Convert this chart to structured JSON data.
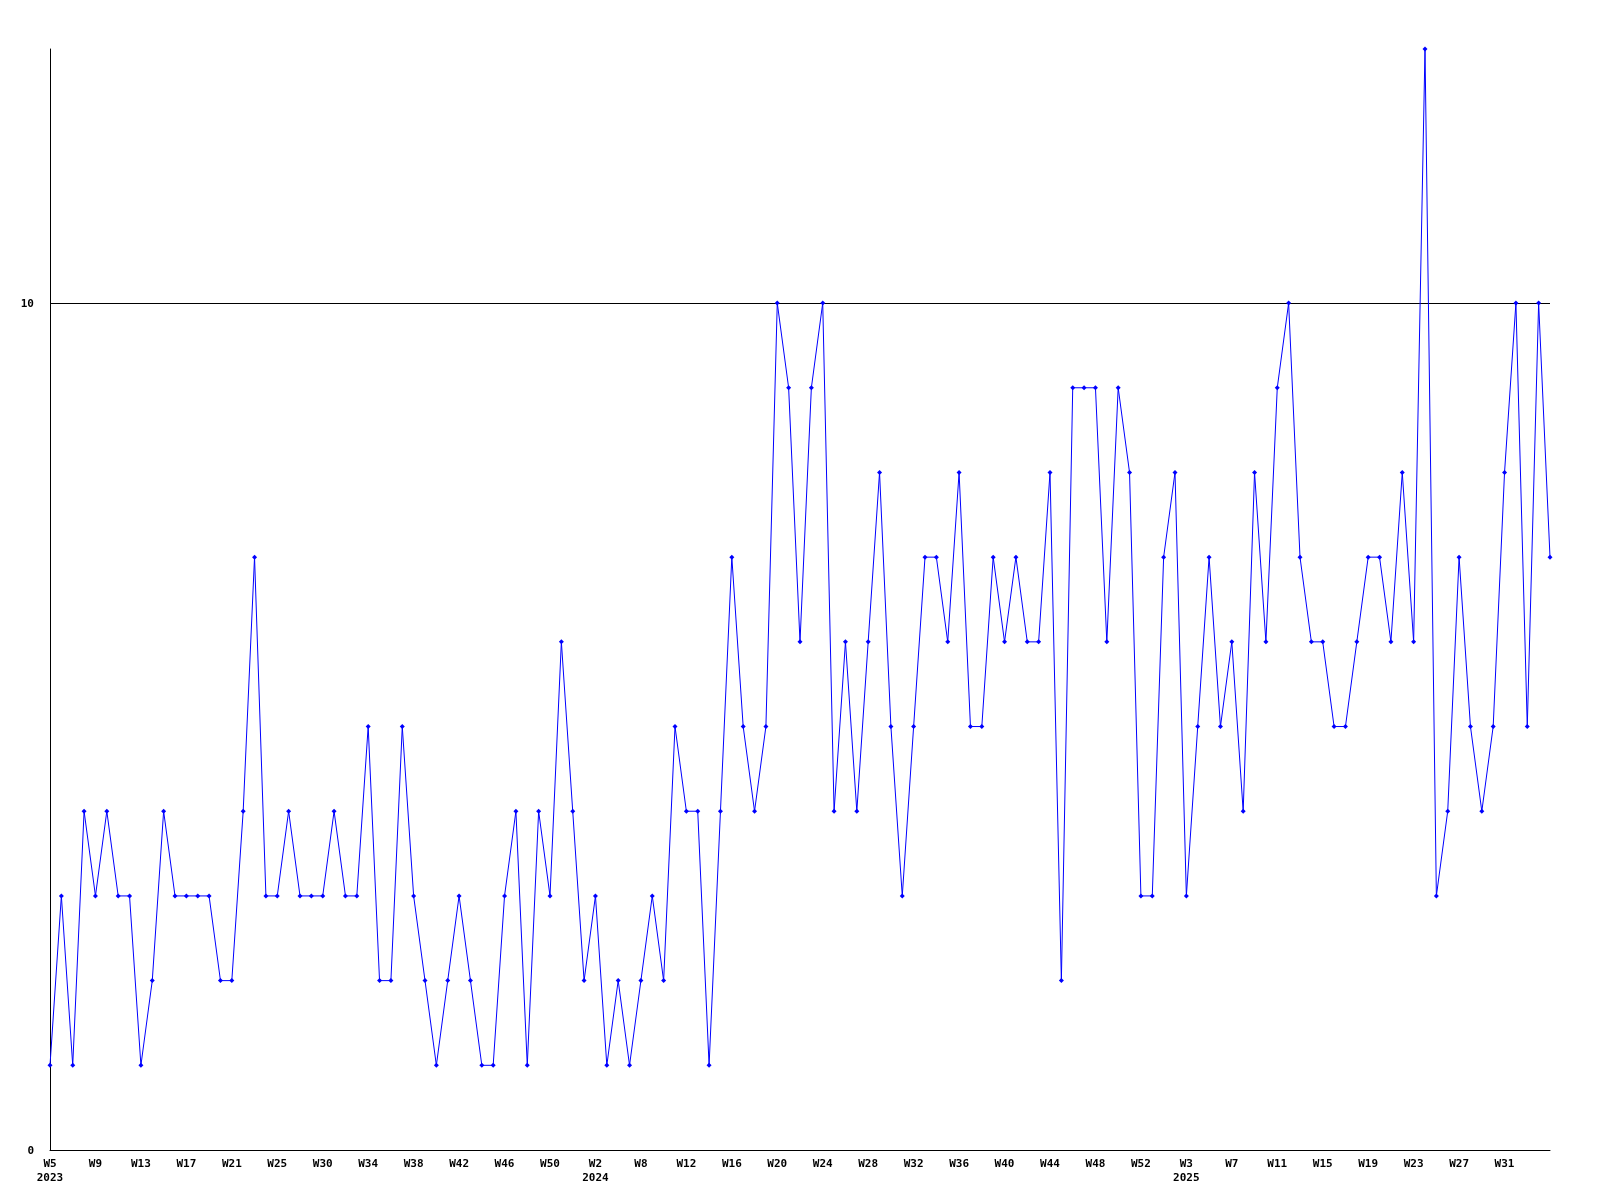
{
  "chart_data": {
    "type": "line",
    "categories": [
      "W5\n2023",
      null,
      null,
      null,
      "W9",
      null,
      null,
      null,
      "W13",
      null,
      null,
      null,
      "W17",
      null,
      null,
      null,
      "W21",
      null,
      null,
      null,
      "W25",
      null,
      null,
      null,
      "W30",
      null,
      null,
      null,
      "W34",
      null,
      null,
      null,
      "W38",
      null,
      null,
      null,
      "W42",
      null,
      null,
      null,
      "W46",
      null,
      null,
      null,
      "W50",
      null,
      null,
      null,
      "W2\n2024",
      null,
      null,
      null,
      "W8",
      null,
      null,
      null,
      "W12",
      null,
      null,
      null,
      "W16",
      null,
      null,
      null,
      "W20",
      null,
      null,
      null,
      "W24",
      null,
      null,
      null,
      "W28",
      null,
      null,
      null,
      "W32",
      null,
      null,
      null,
      "W36",
      null,
      null,
      null,
      "W40",
      null,
      null,
      null,
      "W44",
      null,
      null,
      null,
      "W48",
      null,
      null,
      null,
      "W52",
      null,
      null,
      null,
      "W3\n2025",
      null,
      null,
      null,
      "W7",
      null,
      null,
      null,
      "W11",
      null,
      null,
      null,
      "W15",
      null,
      null,
      null,
      "W19",
      null,
      null,
      null,
      "W23",
      null,
      null,
      null,
      "W27",
      null,
      null,
      null,
      "W31",
      null,
      null,
      null,
      null
    ],
    "series": [
      {
        "color": "#0000ff",
        "values": [
          1,
          3,
          1,
          4,
          3,
          4,
          3,
          3,
          1,
          2,
          4,
          3,
          3,
          3,
          3,
          2,
          2,
          4,
          7,
          3,
          3,
          4,
          3,
          3,
          3,
          4,
          3,
          3,
          5,
          2,
          2,
          5,
          3,
          2,
          1,
          2,
          3,
          2,
          1,
          1,
          3,
          4,
          1,
          4,
          3,
          6,
          4,
          2,
          3,
          1,
          2,
          1,
          2,
          3,
          2,
          5,
          4,
          4,
          1,
          4,
          7,
          5,
          4,
          5,
          10,
          9,
          6,
          9,
          10,
          4,
          6,
          4,
          6,
          8,
          5,
          3,
          5,
          7,
          7,
          6,
          8,
          5,
          5,
          7,
          6,
          7,
          6,
          6,
          8,
          2,
          9,
          9,
          9,
          6,
          9,
          8,
          3,
          3,
          7,
          8,
          3,
          5,
          7,
          5,
          6,
          4,
          8,
          6,
          9,
          10,
          7,
          6,
          6,
          5,
          5,
          6,
          7,
          7,
          6,
          8,
          6,
          13,
          3,
          4,
          7,
          5,
          4,
          5,
          8,
          10,
          5,
          10,
          7
        ]
      }
    ],
    "ylim": [
      0,
      13
    ],
    "yticks": [
      0,
      10
    ],
    "grid": "y",
    "marker": "diamond",
    "line_style": "solid"
  }
}
